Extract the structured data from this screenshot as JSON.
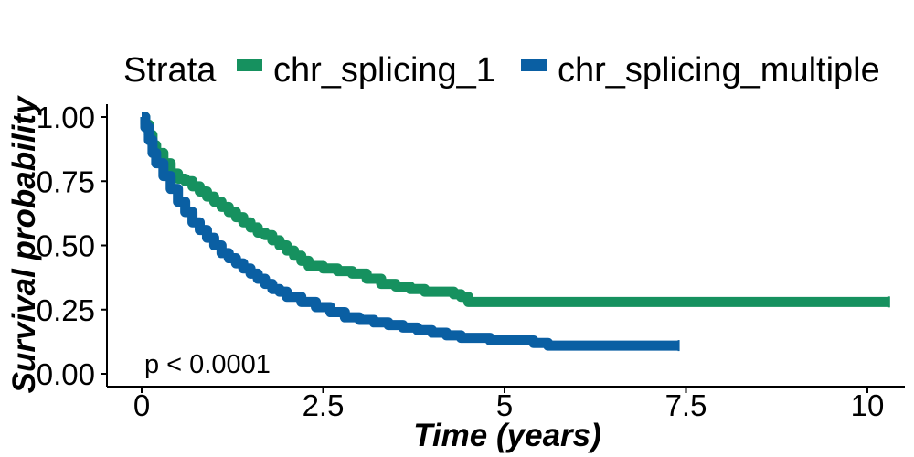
{
  "chart_data": {
    "type": "line",
    "subtype": "kaplan-meier step curve",
    "xlabel": "Time (years)",
    "ylabel": "Survival probability",
    "xlim": [
      0,
      10.4
    ],
    "ylim": [
      0,
      1.03
    ],
    "x_ticks": [
      0,
      2.5,
      5,
      7.5,
      10
    ],
    "x_tick_labels": [
      "0",
      "2.5",
      "5",
      "7.5",
      "10"
    ],
    "y_ticks": [
      0,
      0.25,
      0.5,
      0.75,
      1.0
    ],
    "y_tick_labels": [
      "0.00",
      "0.25",
      "0.50",
      "0.75",
      "1.00"
    ],
    "grid": false,
    "legend": {
      "title": "Strata",
      "placement": "top",
      "entries": [
        "chr_splicing_1",
        "chr_splicing_multiple"
      ]
    },
    "annotation": "p < 0.0001",
    "series": [
      {
        "name": "chr_splicing_1",
        "color": "#16915F",
        "x": [
          0,
          0.05,
          0.1,
          0.15,
          0.2,
          0.3,
          0.4,
          0.5,
          0.6,
          0.7,
          0.8,
          0.9,
          1.0,
          1.1,
          1.2,
          1.3,
          1.4,
          1.5,
          1.6,
          1.7,
          1.8,
          1.9,
          2.0,
          2.1,
          2.2,
          2.3,
          2.5,
          2.7,
          2.9,
          3.1,
          3.3,
          3.5,
          3.7,
          3.9,
          4.1,
          4.3,
          4.4,
          4.5,
          5.0,
          6.0,
          7.0,
          8.0,
          9.0,
          10.3
        ],
        "y": [
          1.0,
          0.97,
          0.93,
          0.89,
          0.86,
          0.82,
          0.78,
          0.76,
          0.75,
          0.73,
          0.71,
          0.69,
          0.67,
          0.65,
          0.63,
          0.61,
          0.59,
          0.57,
          0.55,
          0.54,
          0.52,
          0.5,
          0.48,
          0.46,
          0.44,
          0.42,
          0.41,
          0.4,
          0.39,
          0.37,
          0.35,
          0.34,
          0.33,
          0.32,
          0.32,
          0.31,
          0.3,
          0.28,
          0.28,
          0.28,
          0.28,
          0.28,
          0.28,
          0.28
        ]
      },
      {
        "name": "chr_splicing_multiple",
        "color": "#0A5FA3",
        "x": [
          0,
          0.05,
          0.1,
          0.15,
          0.2,
          0.3,
          0.4,
          0.5,
          0.6,
          0.7,
          0.8,
          0.9,
          1.0,
          1.1,
          1.2,
          1.3,
          1.4,
          1.5,
          1.6,
          1.7,
          1.8,
          1.9,
          2.0,
          2.2,
          2.4,
          2.6,
          2.8,
          3.0,
          3.2,
          3.4,
          3.6,
          3.8,
          4.0,
          4.2,
          4.4,
          4.6,
          4.8,
          5.0,
          5.2,
          5.4,
          5.6,
          6.0,
          6.5,
          7.0,
          7.4
        ],
        "y": [
          1.0,
          0.96,
          0.91,
          0.86,
          0.82,
          0.77,
          0.72,
          0.67,
          0.63,
          0.59,
          0.56,
          0.53,
          0.5,
          0.47,
          0.45,
          0.43,
          0.41,
          0.39,
          0.37,
          0.35,
          0.33,
          0.32,
          0.3,
          0.28,
          0.26,
          0.24,
          0.22,
          0.21,
          0.2,
          0.19,
          0.18,
          0.17,
          0.16,
          0.15,
          0.14,
          0.14,
          0.13,
          0.13,
          0.13,
          0.12,
          0.11,
          0.11,
          0.11,
          0.11,
          0.11
        ]
      }
    ]
  }
}
